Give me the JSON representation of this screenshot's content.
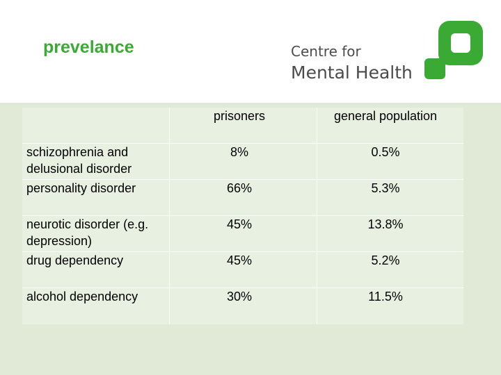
{
  "title": "prevelance",
  "logo": {
    "line1": "Centre for",
    "line2": "Mental Health",
    "colors": {
      "mark": "#3aaa35",
      "text": "#4b4b4b"
    }
  },
  "table": {
    "headers": [
      "",
      "prisoners",
      "general population"
    ],
    "rows": [
      {
        "label": "schizophrenia and delusional disorder",
        "prisoners": "8%",
        "general": "0.5%"
      },
      {
        "label": "personality disorder",
        "prisoners": "66%",
        "general": "5.3%"
      },
      {
        "label": "neurotic disorder (e.g. depression)",
        "prisoners": "45%",
        "general": "13.8%"
      },
      {
        "label": "drug dependency",
        "prisoners": "45%",
        "general": "5.2%"
      },
      {
        "label": "alcohol dependency",
        "prisoners": "30%",
        "general": "11.5%"
      }
    ]
  },
  "colors": {
    "title": "#3aaa35",
    "background": "#e1ead6",
    "table_fill": "#e8f0e2"
  }
}
